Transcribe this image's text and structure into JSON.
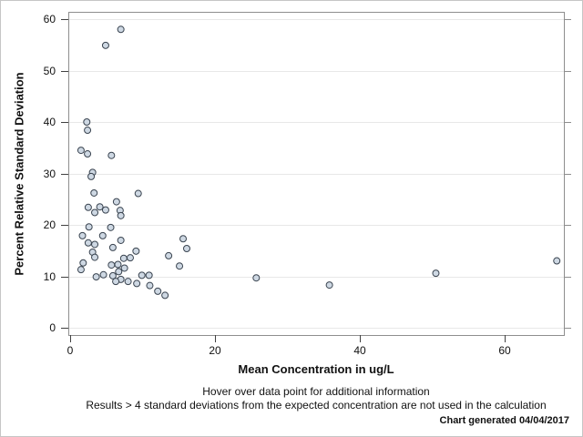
{
  "chart_data": {
    "type": "scatter",
    "title": "",
    "xlabel": "Mean Concentration in ug/L",
    "ylabel": "Percent Relative Standard Deviation",
    "xlim": [
      0,
      68.5
    ],
    "ylim": [
      0,
      61.5
    ],
    "x_ticks": [
      0,
      20,
      40,
      60
    ],
    "y_ticks": [
      0,
      10,
      20,
      30,
      40,
      50,
      60
    ],
    "grid": "horizontal-only",
    "legend": "none",
    "marker": {
      "shape": "circle",
      "radius_px": 3.5
    },
    "points": [
      [
        7.0,
        58.0
      ],
      [
        4.9,
        54.9
      ],
      [
        2.3,
        40.0
      ],
      [
        2.4,
        38.4
      ],
      [
        1.5,
        34.5
      ],
      [
        2.4,
        33.8
      ],
      [
        5.7,
        33.5
      ],
      [
        3.1,
        30.2
      ],
      [
        2.9,
        29.4
      ],
      [
        3.3,
        26.2
      ],
      [
        9.4,
        26.1
      ],
      [
        6.4,
        24.5
      ],
      [
        2.5,
        23.4
      ],
      [
        4.1,
        23.5
      ],
      [
        4.9,
        22.9
      ],
      [
        3.4,
        22.4
      ],
      [
        6.9,
        22.8
      ],
      [
        7.0,
        21.8
      ],
      [
        2.6,
        19.6
      ],
      [
        5.6,
        19.5
      ],
      [
        1.7,
        17.9
      ],
      [
        4.5,
        17.9
      ],
      [
        2.5,
        16.5
      ],
      [
        3.4,
        16.2
      ],
      [
        7.0,
        17.0
      ],
      [
        5.9,
        15.6
      ],
      [
        3.1,
        14.7
      ],
      [
        3.4,
        13.7
      ],
      [
        1.8,
        12.6
      ],
      [
        1.5,
        11.3
      ],
      [
        15.6,
        17.3
      ],
      [
        16.1,
        15.4
      ],
      [
        13.6,
        14.0
      ],
      [
        15.1,
        12.0
      ],
      [
        9.1,
        14.9
      ],
      [
        8.3,
        13.6
      ],
      [
        7.4,
        13.5
      ],
      [
        6.6,
        12.3
      ],
      [
        5.7,
        12.2
      ],
      [
        7.5,
        11.6
      ],
      [
        6.7,
        10.9
      ],
      [
        5.9,
        10.1
      ],
      [
        7.0,
        9.4
      ],
      [
        6.3,
        9.0
      ],
      [
        8.0,
        9.0
      ],
      [
        3.6,
        9.9
      ],
      [
        4.6,
        10.3
      ],
      [
        9.9,
        10.2
      ],
      [
        10.9,
        10.2
      ],
      [
        9.2,
        8.6
      ],
      [
        11.0,
        8.2
      ],
      [
        12.1,
        7.1
      ],
      [
        13.1,
        6.3
      ],
      [
        25.7,
        9.7
      ],
      [
        35.8,
        8.3
      ],
      [
        50.5,
        10.6
      ],
      [
        67.2,
        13.0
      ]
    ]
  },
  "footer": {
    "line1": "Hover over data point for additional information",
    "line2": "Results > 4 standard deviations from the expected concentration are not used in the calculation",
    "generated": "Chart generated 04/04/2017"
  },
  "colors": {
    "background": "#FFFFFF",
    "outer_border": "#C6C6C6",
    "frame": "#8E8E8E",
    "axis_tick": "#404040",
    "right_tick": "#8E8E8E",
    "gridline": "#E8E8E8",
    "text": "#111111",
    "marker_fill": "#CED8E3",
    "marker_stroke": "#39434F"
  }
}
